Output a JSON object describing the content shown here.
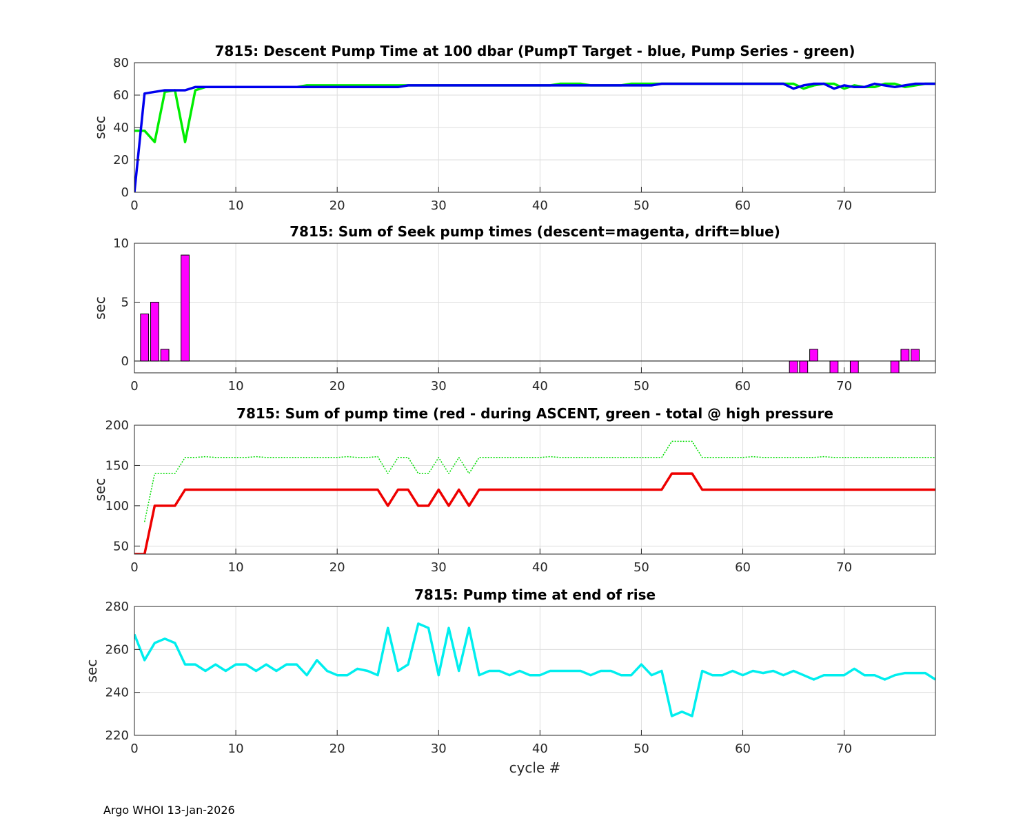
{
  "footer": "Argo WHOI 13-Jan-2026",
  "chart_data": [
    {
      "type": "line",
      "title": "7815: Descent Pump Time at 100 dbar (PumpT Target - blue, Pump Series - green)",
      "ylabel": "sec",
      "xlabel": "",
      "xlim": [
        0,
        79
      ],
      "ylim": [
        0,
        80
      ],
      "xticks": [
        0,
        10,
        20,
        30,
        40,
        50,
        60,
        70
      ],
      "yticks": [
        0,
        20,
        40,
        60,
        80
      ],
      "grid": true,
      "series": [
        {
          "color": "#00ee00",
          "style": "solid",
          "x": [
            0,
            1,
            2,
            3,
            4,
            5,
            6,
            7,
            8,
            9,
            10,
            11,
            12,
            13,
            14,
            15,
            16,
            17,
            18,
            19,
            20,
            21,
            22,
            23,
            24,
            25,
            26,
            27,
            28,
            29,
            30,
            31,
            32,
            33,
            34,
            35,
            36,
            37,
            38,
            39,
            40,
            41,
            42,
            43,
            44,
            45,
            46,
            47,
            48,
            49,
            50,
            51,
            52,
            53,
            54,
            55,
            56,
            57,
            58,
            59,
            60,
            61,
            62,
            63,
            64,
            65,
            66,
            67,
            68,
            69,
            70,
            71,
            72,
            73,
            74,
            75,
            76,
            77,
            78,
            79
          ],
          "values": [
            38,
            38,
            31,
            62,
            63,
            31,
            63,
            65,
            65,
            65,
            65,
            65,
            65,
            65,
            65,
            65,
            65,
            66,
            66,
            66,
            66,
            66,
            66,
            66,
            66,
            66,
            66,
            66,
            66,
            66,
            66,
            66,
            66,
            66,
            66,
            66,
            66,
            66,
            66,
            66,
            66,
            66,
            67,
            67,
            67,
            66,
            66,
            66,
            66,
            67,
            67,
            67,
            67,
            67,
            67,
            67,
            67,
            67,
            67,
            67,
            67,
            67,
            67,
            67,
            67,
            67,
            64,
            66,
            67,
            67,
            64,
            66,
            65,
            65,
            67,
            67,
            65,
            66,
            67,
            67
          ]
        },
        {
          "color": "#0000ee",
          "style": "solid",
          "x": [
            0,
            1,
            2,
            3,
            4,
            5,
            6,
            7,
            8,
            9,
            10,
            11,
            12,
            13,
            14,
            15,
            16,
            17,
            18,
            19,
            20,
            21,
            22,
            23,
            24,
            25,
            26,
            27,
            28,
            29,
            30,
            31,
            32,
            33,
            34,
            35,
            36,
            37,
            38,
            39,
            40,
            41,
            42,
            43,
            44,
            45,
            46,
            47,
            48,
            49,
            50,
            51,
            52,
            53,
            54,
            55,
            56,
            57,
            58,
            59,
            60,
            61,
            62,
            63,
            64,
            65,
            66,
            67,
            68,
            69,
            70,
            71,
            72,
            73,
            74,
            75,
            76,
            77,
            78,
            79
          ],
          "values": [
            0,
            61,
            62,
            63,
            63,
            63,
            65,
            65,
            65,
            65,
            65,
            65,
            65,
            65,
            65,
            65,
            65,
            65,
            65,
            65,
            65,
            65,
            65,
            65,
            65,
            65,
            65,
            66,
            66,
            66,
            66,
            66,
            66,
            66,
            66,
            66,
            66,
            66,
            66,
            66,
            66,
            66,
            66,
            66,
            66,
            66,
            66,
            66,
            66,
            66,
            66,
            66,
            67,
            67,
            67,
            67,
            67,
            67,
            67,
            67,
            67,
            67,
            67,
            67,
            67,
            64,
            66,
            67,
            67,
            64,
            66,
            65,
            65,
            67,
            66,
            65,
            66,
            67,
            67,
            67
          ]
        }
      ]
    },
    {
      "type": "bar",
      "title": "7815: Sum of Seek pump times (descent=magenta, drift=blue)",
      "ylabel": "sec",
      "xlabel": "",
      "xlim": [
        0,
        79
      ],
      "ylim": [
        -1,
        10
      ],
      "xticks": [
        0,
        10,
        20,
        30,
        40,
        50,
        60,
        70
      ],
      "yticks": [
        0,
        5,
        10
      ],
      "grid": true,
      "bar_color": "#ff00ff",
      "x": [
        1,
        2,
        3,
        5,
        65,
        66,
        67,
        69,
        71,
        75,
        76,
        77
      ],
      "values": [
        4,
        5,
        1,
        9,
        -1,
        -1,
        1,
        -1,
        -1,
        -1,
        1,
        1
      ]
    },
    {
      "type": "line",
      "title": "7815: Sum of pump time (red - during ASCENT, green - total @ high pressure",
      "ylabel": "sec",
      "xlabel": "",
      "xlim": [
        0,
        79
      ],
      "ylim": [
        40,
        200
      ],
      "xticks": [
        0,
        10,
        20,
        30,
        40,
        50,
        60,
        70
      ],
      "yticks": [
        50,
        100,
        150,
        200
      ],
      "grid": true,
      "series": [
        {
          "color": "#00dd00",
          "style": "dotted",
          "x": [
            1,
            2,
            3,
            4,
            5,
            6,
            7,
            8,
            9,
            10,
            11,
            12,
            13,
            14,
            15,
            16,
            17,
            18,
            19,
            20,
            21,
            22,
            23,
            24,
            25,
            26,
            27,
            28,
            29,
            30,
            31,
            32,
            33,
            34,
            35,
            36,
            37,
            38,
            39,
            40,
            41,
            42,
            43,
            44,
            45,
            46,
            47,
            48,
            49,
            50,
            51,
            52,
            53,
            54,
            55,
            56,
            57,
            58,
            59,
            60,
            61,
            62,
            63,
            64,
            65,
            66,
            67,
            68,
            69,
            70,
            71,
            72,
            73,
            74,
            75,
            76,
            77,
            78,
            79
          ],
          "values": [
            80,
            140,
            140,
            140,
            160,
            160,
            161,
            160,
            160,
            160,
            160,
            161,
            160,
            160,
            160,
            160,
            160,
            160,
            160,
            160,
            161,
            160,
            160,
            161,
            140,
            160,
            160,
            140,
            140,
            160,
            140,
            160,
            140,
            160,
            160,
            160,
            160,
            160,
            160,
            160,
            161,
            160,
            160,
            160,
            160,
            160,
            160,
            160,
            160,
            160,
            160,
            160,
            180,
            180,
            180,
            160,
            160,
            160,
            160,
            160,
            161,
            160,
            160,
            160,
            160,
            160,
            160,
            161,
            160,
            160,
            160,
            160,
            160,
            160,
            160,
            160,
            160,
            160,
            160
          ]
        },
        {
          "color": "#ee0000",
          "style": "solid",
          "x": [
            0,
            1,
            2,
            3,
            4,
            5,
            6,
            7,
            8,
            9,
            10,
            11,
            12,
            13,
            14,
            15,
            16,
            17,
            18,
            19,
            20,
            21,
            22,
            23,
            24,
            25,
            26,
            27,
            28,
            29,
            30,
            31,
            32,
            33,
            34,
            35,
            36,
            37,
            38,
            39,
            40,
            41,
            42,
            43,
            44,
            45,
            46,
            47,
            48,
            49,
            50,
            51,
            52,
            53,
            54,
            55,
            56,
            57,
            58,
            59,
            60,
            61,
            62,
            63,
            64,
            65,
            66,
            67,
            68,
            69,
            70,
            71,
            72,
            73,
            74,
            75,
            76,
            77,
            78,
            79
          ],
          "values": [
            40,
            40,
            100,
            100,
            100,
            120,
            120,
            120,
            120,
            120,
            120,
            120,
            120,
            120,
            120,
            120,
            120,
            120,
            120,
            120,
            120,
            120,
            120,
            120,
            120,
            100,
            120,
            120,
            100,
            100,
            120,
            100,
            120,
            100,
            120,
            120,
            120,
            120,
            120,
            120,
            120,
            120,
            120,
            120,
            120,
            120,
            120,
            120,
            120,
            120,
            120,
            120,
            120,
            140,
            140,
            140,
            120,
            120,
            120,
            120,
            120,
            120,
            120,
            120,
            120,
            120,
            120,
            120,
            120,
            120,
            120,
            120,
            120,
            120,
            120,
            120,
            120,
            120,
            120,
            120
          ]
        }
      ]
    },
    {
      "type": "line",
      "title": "7815: Pump time at end of rise",
      "ylabel": "sec",
      "xlabel": "cycle #",
      "xlim": [
        0,
        79
      ],
      "ylim": [
        220,
        280
      ],
      "xticks": [
        0,
        10,
        20,
        30,
        40,
        50,
        60,
        70
      ],
      "yticks": [
        220,
        240,
        260,
        280
      ],
      "grid": true,
      "series": [
        {
          "color": "#00eeee",
          "style": "solid",
          "x": [
            0,
            1,
            2,
            3,
            4,
            5,
            6,
            7,
            8,
            9,
            10,
            11,
            12,
            13,
            14,
            15,
            16,
            17,
            18,
            19,
            20,
            21,
            22,
            23,
            24,
            25,
            26,
            27,
            28,
            29,
            30,
            31,
            32,
            33,
            34,
            35,
            36,
            37,
            38,
            39,
            40,
            41,
            42,
            43,
            44,
            45,
            46,
            47,
            48,
            49,
            50,
            51,
            52,
            53,
            54,
            55,
            56,
            57,
            58,
            59,
            60,
            61,
            62,
            63,
            64,
            65,
            66,
            67,
            68,
            69,
            70,
            71,
            72,
            73,
            74,
            75,
            76,
            77,
            78,
            79
          ],
          "values": [
            267,
            255,
            263,
            265,
            263,
            253,
            253,
            250,
            253,
            250,
            253,
            253,
            250,
            253,
            250,
            253,
            253,
            248,
            255,
            250,
            248,
            248,
            251,
            250,
            248,
            270,
            250,
            253,
            272,
            270,
            248,
            270,
            250,
            270,
            248,
            250,
            250,
            248,
            250,
            248,
            248,
            250,
            250,
            250,
            250,
            248,
            250,
            250,
            248,
            248,
            253,
            248,
            250,
            229,
            231,
            229,
            250,
            248,
            248,
            250,
            248,
            250,
            249,
            250,
            248,
            250,
            248,
            246,
            248,
            248,
            248,
            251,
            248,
            248,
            246,
            248,
            249,
            249,
            249,
            246
          ]
        }
      ]
    }
  ]
}
